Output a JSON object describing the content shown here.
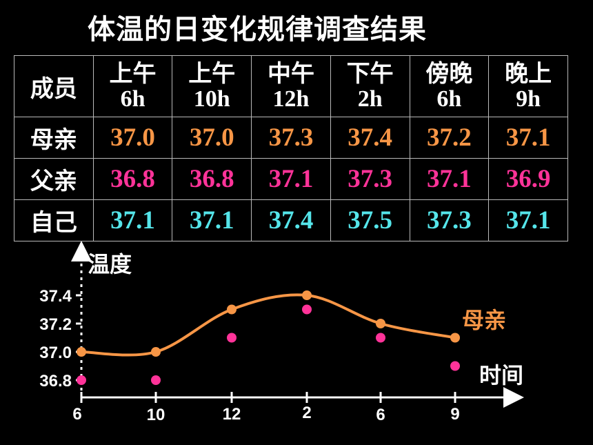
{
  "title": "体温的日变化规律调查结果",
  "table": {
    "corner": "成员",
    "columns": [
      {
        "top": "上午",
        "bottom": "6h"
      },
      {
        "top": "上午",
        "bottom": "10h"
      },
      {
        "top": "中午",
        "bottom": "12h"
      },
      {
        "top": "下午",
        "bottom": "2h"
      },
      {
        "top": "傍晚",
        "bottom": "6h"
      },
      {
        "top": "晚上",
        "bottom": "9h"
      }
    ],
    "rows": [
      {
        "name": "母亲",
        "values": [
          "37.0",
          "37.0",
          "37.3",
          "37.4",
          "37.2",
          "37.1"
        ]
      },
      {
        "name": "父亲",
        "values": [
          "36.8",
          "36.8",
          "37.1",
          "37.3",
          "37.1",
          "36.9"
        ]
      },
      {
        "name": "自己",
        "values": [
          "37.1",
          "37.1",
          "37.4",
          "37.5",
          "37.3",
          "37.1"
        ]
      }
    ]
  },
  "colors": {
    "mother": "#f79646",
    "father": "#ff3399",
    "self": "#55e5ea"
  },
  "chart_data": {
    "type": "scatter",
    "ylabel": "温度",
    "legend_label": "母亲",
    "xlabel_annotation": "时间",
    "x_tick_labels": [
      "6",
      "10",
      "12",
      "2",
      "6",
      "9"
    ],
    "y_tick_labels": [
      "37.4",
      "37.2",
      "37.0",
      "36.8"
    ],
    "series": [
      {
        "name": "母亲",
        "style": "smooth-line-with-markers",
        "color": "#f79646",
        "values": [
          37.0,
          37.0,
          37.3,
          37.4,
          37.2,
          37.1
        ]
      },
      {
        "style": "markers",
        "color": "#ff3399",
        "values": [
          36.8,
          36.8,
          37.1,
          37.3,
          37.1,
          36.9
        ]
      }
    ]
  }
}
